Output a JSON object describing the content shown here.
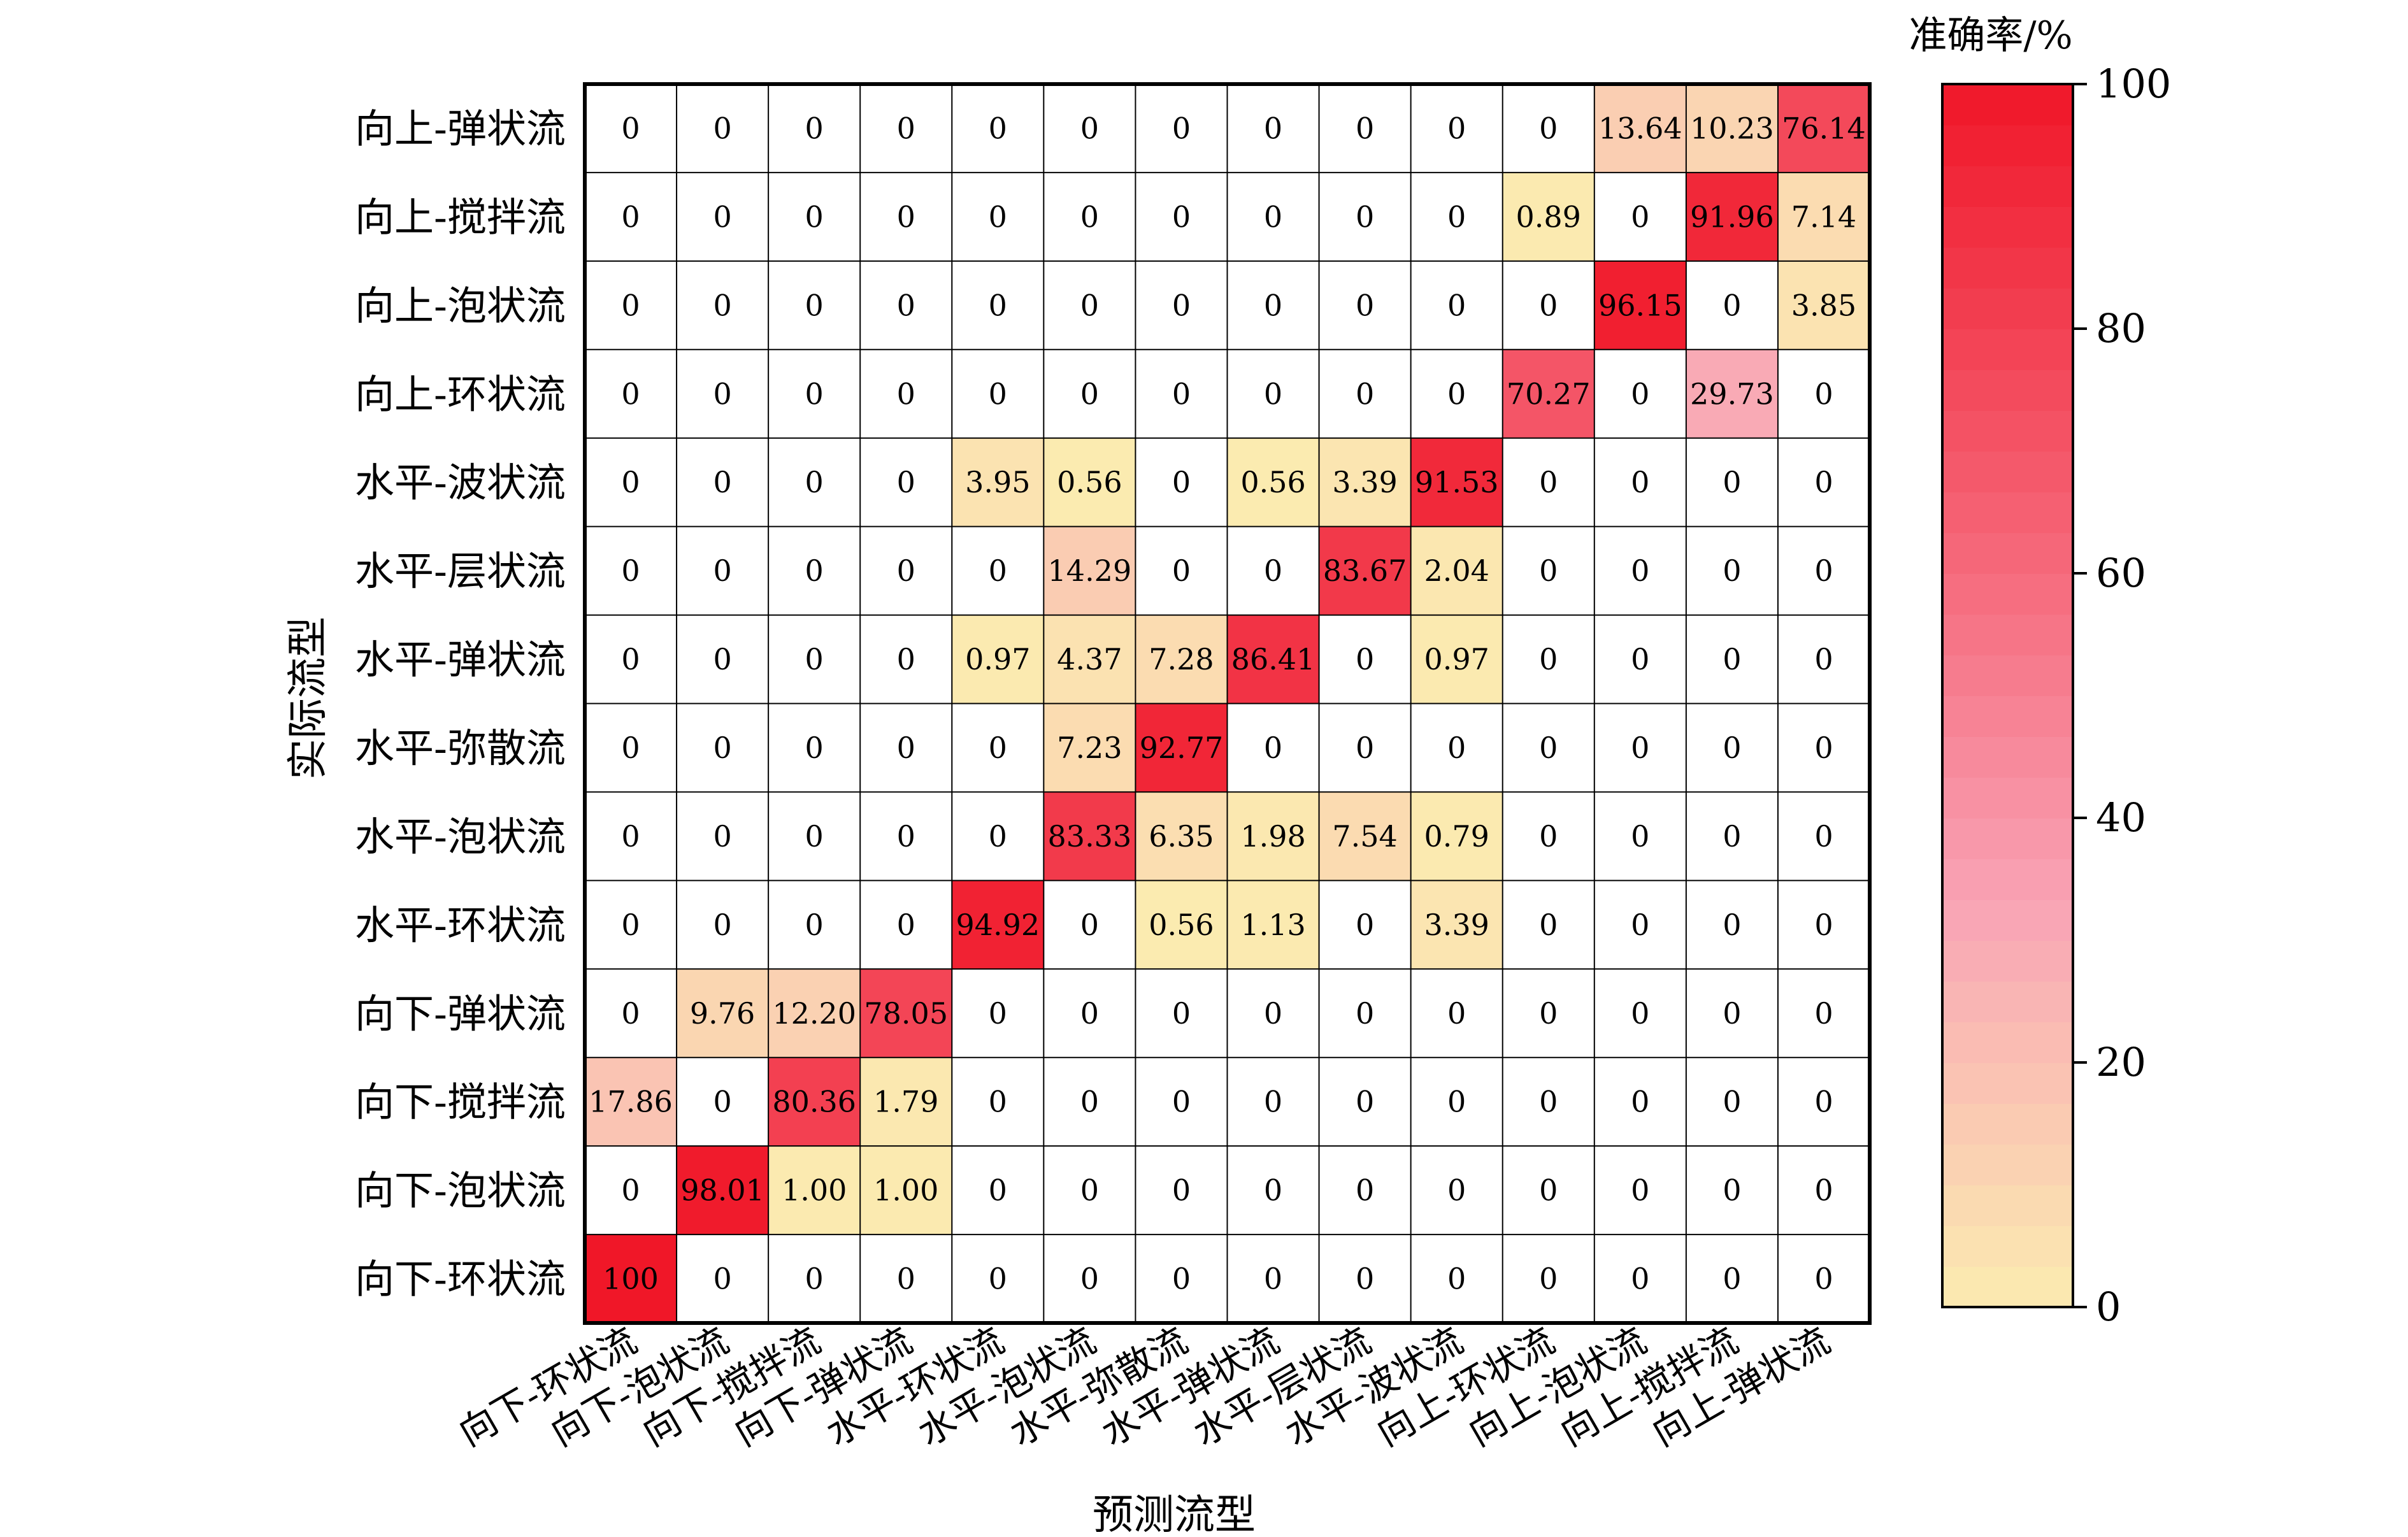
{
  "chart_data": {
    "type": "heatmap",
    "xlabel": "预测流型",
    "ylabel": "实际流型",
    "colorbar_title": "准确率/%",
    "colorbar_range": [
      0,
      100
    ],
    "colorbar_ticks": [
      "0",
      "20",
      "40",
      "60",
      "80",
      "100"
    ],
    "colors": {
      "low": "#fbecb0",
      "mid": "#f9a3b5",
      "high": "#f01728",
      "zero": "#ffffff",
      "grid": "#000000"
    },
    "rows": [
      "向上-弹状流",
      "向上-搅拌流",
      "向上-泡状流",
      "向上-环状流",
      "水平-波状流",
      "水平-层状流",
      "水平-弹状流",
      "水平-弥散流",
      "水平-泡状流",
      "水平-环状流",
      "向下-弹状流",
      "向下-搅拌流",
      "向下-泡状流",
      "向下-环状流"
    ],
    "columns": [
      "向下-环状流",
      "向下-泡状流",
      "向下-搅拌流",
      "向下-弹状流",
      "水平-环状流",
      "水平-泡状流",
      "水平-弥散流",
      "水平-弹状流",
      "水平-层状流",
      "水平-波状流",
      "向上-环状流",
      "向上-泡状流",
      "向上-搅拌流",
      "向上-弹状流"
    ],
    "values": [
      [
        "0",
        "0",
        "0",
        "0",
        "0",
        "0",
        "0",
        "0",
        "0",
        "0",
        "0",
        "13.64",
        "10.23",
        "76.14"
      ],
      [
        "0",
        "0",
        "0",
        "0",
        "0",
        "0",
        "0",
        "0",
        "0",
        "0",
        "0.89",
        "0",
        "91.96",
        "7.14"
      ],
      [
        "0",
        "0",
        "0",
        "0",
        "0",
        "0",
        "0",
        "0",
        "0",
        "0",
        "0",
        "96.15",
        "0",
        "3.85"
      ],
      [
        "0",
        "0",
        "0",
        "0",
        "0",
        "0",
        "0",
        "0",
        "0",
        "0",
        "70.27",
        "0",
        "29.73",
        "0"
      ],
      [
        "0",
        "0",
        "0",
        "0",
        "3.95",
        "0.56",
        "0",
        "0.56",
        "3.39",
        "91.53",
        "0",
        "0",
        "0",
        "0"
      ],
      [
        "0",
        "0",
        "0",
        "0",
        "0",
        "14.29",
        "0",
        "0",
        "83.67",
        "2.04",
        "0",
        "0",
        "0",
        "0"
      ],
      [
        "0",
        "0",
        "0",
        "0",
        "0.97",
        "4.37",
        "7.28",
        "86.41",
        "0",
        "0.97",
        "0",
        "0",
        "0",
        "0"
      ],
      [
        "0",
        "0",
        "0",
        "0",
        "0",
        "7.23",
        "92.77",
        "0",
        "0",
        "0",
        "0",
        "0",
        "0",
        "0"
      ],
      [
        "0",
        "0",
        "0",
        "0",
        "0",
        "83.33",
        "6.35",
        "1.98",
        "7.54",
        "0.79",
        "0",
        "0",
        "0",
        "0"
      ],
      [
        "0",
        "0",
        "0",
        "0",
        "94.92",
        "0",
        "0.56",
        "1.13",
        "0",
        "3.39",
        "0",
        "0",
        "0",
        "0"
      ],
      [
        "0",
        "9.76",
        "12.20",
        "78.05",
        "0",
        "0",
        "0",
        "0",
        "0",
        "0",
        "0",
        "0",
        "0",
        "0"
      ],
      [
        "17.86",
        "0",
        "80.36",
        "1.79",
        "0",
        "0",
        "0",
        "0",
        "0",
        "0",
        "0",
        "0",
        "0",
        "0"
      ],
      [
        "0",
        "98.01",
        "1.00",
        "1.00",
        "0",
        "0",
        "0",
        "0",
        "0",
        "0",
        "0",
        "0",
        "0",
        "0"
      ],
      [
        "100",
        "0",
        "0",
        "0",
        "0",
        "0",
        "0",
        "0",
        "0",
        "0",
        "0",
        "0",
        "0",
        "0"
      ]
    ]
  }
}
